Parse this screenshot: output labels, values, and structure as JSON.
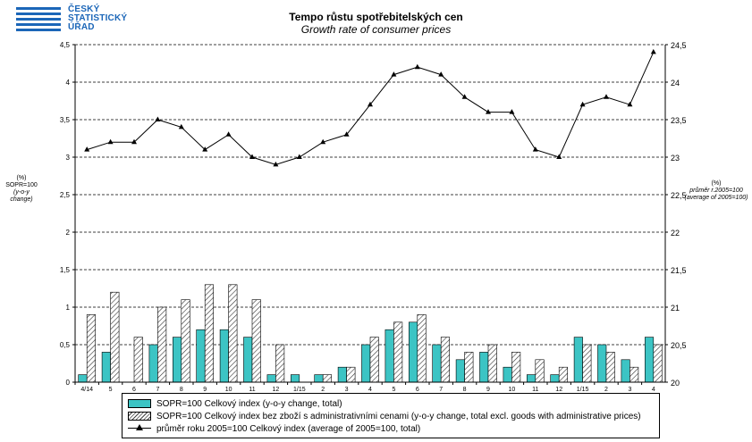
{
  "logo": {
    "line1": "ČESKÝ",
    "line2": "STATISTICKÝ",
    "line3": "ÚŘAD"
  },
  "chart_data": {
    "type": "bar",
    "title": "Tempo růstu spotřebitelských cen",
    "subtitle": "Growth rate of consumer prices",
    "left_axis_label": {
      "line1": "(%)",
      "line2": "SOPR=100",
      "line3": "(y-o-y change)"
    },
    "right_axis_label": {
      "line1": "(%)",
      "line2": "průměr r.2005=100",
      "line3": "(average of 2005=100)"
    },
    "categories": [
      "4/14",
      "5",
      "6",
      "7",
      "8",
      "9",
      "10",
      "11",
      "12",
      "1/15",
      "2",
      "3",
      "4",
      "5",
      "6",
      "7",
      "8",
      "9",
      "10",
      "11",
      "12",
      "1/15",
      "2",
      "3",
      "4"
    ],
    "ylim_left": [
      0,
      4.5
    ],
    "ylim_right": [
      20,
      24.5
    ],
    "yticks_left": [
      "0",
      "0,5",
      "1",
      "1,5",
      "2",
      "2,5",
      "3",
      "3,5",
      "4",
      "4,5"
    ],
    "yticks_right": [
      "20",
      "20,5",
      "21",
      "21,5",
      "22",
      "22,5",
      "23",
      "23,5",
      "24",
      "24,5"
    ],
    "grid": true,
    "legend_position": "bottom",
    "series": [
      {
        "name": "SOPR=100 Celkový index (y-o-y change, total)",
        "axis": "left",
        "kind": "bar",
        "color": "#3cc4c4",
        "values": [
          0.1,
          0.4,
          0.0,
          0.5,
          0.6,
          0.7,
          0.7,
          0.6,
          0.1,
          0.1,
          0.1,
          0.2,
          0.5,
          0.7,
          0.8,
          0.5,
          0.3,
          0.4,
          0.2,
          0.1,
          0.1,
          0.6,
          0.5,
          0.3,
          0.6
        ]
      },
      {
        "name": "SOPR=100 Celkový index bez zboží s administrativními cenami (y-o-y change, total excl. goods with administrative prices)",
        "axis": "left",
        "kind": "bar-hatched",
        "color": "#ffffff",
        "values": [
          0.9,
          1.2,
          0.6,
          1.0,
          1.1,
          1.3,
          1.3,
          1.1,
          0.5,
          0.0,
          0.1,
          0.2,
          0.6,
          0.8,
          0.9,
          0.6,
          0.4,
          0.5,
          0.4,
          0.3,
          0.2,
          0.5,
          0.4,
          0.2,
          0.5
        ]
      },
      {
        "name": "průměr roku 2005=100 Celkový index (average of 2005=100, total)",
        "axis": "right",
        "kind": "line-triangle",
        "color": "#000000",
        "values": [
          23.1,
          23.2,
          23.2,
          23.5,
          23.4,
          23.1,
          23.3,
          23.0,
          22.9,
          23.0,
          23.2,
          23.3,
          23.7,
          24.1,
          24.2,
          24.1,
          23.8,
          23.6,
          23.6,
          23.1,
          23.0,
          23.7,
          23.8,
          23.7,
          24.4
        ]
      }
    ]
  }
}
